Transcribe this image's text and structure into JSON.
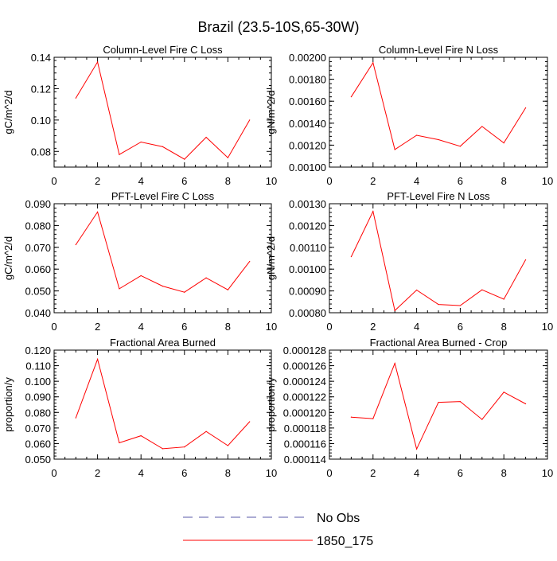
{
  "figure": {
    "title": "Brazil (23.5-10S,65-30W)"
  },
  "legend": {
    "entries": [
      {
        "label": "No Obs",
        "color": "#5a5aa8",
        "style": "dashed"
      },
      {
        "label": "1850_175",
        "color": "#ff0000",
        "style": "solid"
      }
    ]
  },
  "chart_data": [
    {
      "type": "line",
      "title": "Column-Level Fire C Loss",
      "xlabel": "",
      "ylabel": "gC/m^2/d",
      "xlim": [
        0,
        10
      ],
      "ylim": [
        0.07,
        0.14
      ],
      "x_ticks": [
        0,
        2,
        4,
        6,
        8,
        10
      ],
      "y_ticks": [
        0.08,
        0.1,
        0.12,
        0.14
      ],
      "y_tick_labels": [
        "0.08",
        "0.10",
        "0.12",
        "0.14"
      ],
      "series": [
        {
          "name": "1850_175",
          "color": "#ff0000",
          "x": [
            1,
            2,
            3,
            4,
            5,
            6,
            7,
            8,
            9
          ],
          "values": [
            0.114,
            0.137,
            0.078,
            0.086,
            0.083,
            0.075,
            0.089,
            0.076,
            0.1
          ]
        }
      ]
    },
    {
      "type": "line",
      "title": "Column-Level Fire N Loss",
      "xlabel": "",
      "ylabel": "gN/m^2/d",
      "xlim": [
        0,
        10
      ],
      "ylim": [
        0.001,
        0.002
      ],
      "x_ticks": [
        0,
        2,
        4,
        6,
        8,
        10
      ],
      "y_ticks": [
        0.001,
        0.0012,
        0.0014,
        0.0016,
        0.0018,
        0.002
      ],
      "y_tick_labels": [
        "0.00100",
        "0.00120",
        "0.00140",
        "0.00160",
        "0.00180",
        "0.00200"
      ],
      "series": [
        {
          "name": "1850_175",
          "color": "#ff0000",
          "x": [
            1,
            2,
            3,
            4,
            5,
            6,
            7,
            8,
            9
          ],
          "values": [
            0.00164,
            0.00195,
            0.00116,
            0.00129,
            0.00125,
            0.00119,
            0.00137,
            0.00122,
            0.00154
          ]
        }
      ]
    },
    {
      "type": "line",
      "title": "PFT-Level Fire C Loss",
      "xlabel": "",
      "ylabel": "gC/m^2/d",
      "xlim": [
        0,
        10
      ],
      "ylim": [
        0.04,
        0.09
      ],
      "x_ticks": [
        0,
        2,
        4,
        6,
        8,
        10
      ],
      "y_ticks": [
        0.04,
        0.05,
        0.06,
        0.07,
        0.08,
        0.09
      ],
      "y_tick_labels": [
        "0.040",
        "0.050",
        "0.060",
        "0.070",
        "0.080",
        "0.090"
      ],
      "series": [
        {
          "name": "1850_175",
          "color": "#ff0000",
          "x": [
            1,
            2,
            3,
            4,
            5,
            6,
            7,
            8,
            9
          ],
          "values": [
            0.0712,
            0.0862,
            0.051,
            0.057,
            0.0522,
            0.0494,
            0.056,
            0.0505,
            0.0635
          ]
        }
      ]
    },
    {
      "type": "line",
      "title": "PFT-Level Fire N Loss",
      "xlabel": "",
      "ylabel": "gN/m^2/d",
      "xlim": [
        0,
        10
      ],
      "ylim": [
        0.0008,
        0.0013
      ],
      "x_ticks": [
        0,
        2,
        4,
        6,
        8,
        10
      ],
      "y_ticks": [
        0.0008,
        0.0009,
        0.001,
        0.0011,
        0.0012,
        0.0013
      ],
      "y_tick_labels": [
        "0.00080",
        "0.00090",
        "0.00100",
        "0.00110",
        "0.00120",
        "0.00130"
      ],
      "series": [
        {
          "name": "1850_175",
          "color": "#ff0000",
          "x": [
            1,
            2,
            3,
            4,
            5,
            6,
            7,
            8,
            9
          ],
          "values": [
            0.001057,
            0.001265,
            0.00081,
            0.000904,
            0.000838,
            0.000833,
            0.000905,
            0.000862,
            0.001043
          ]
        }
      ]
    },
    {
      "type": "line",
      "title": "Fractional Area Burned",
      "xlabel": "",
      "ylabel": "proportion/y",
      "xlim": [
        0,
        10
      ],
      "ylim": [
        0.05,
        0.12
      ],
      "x_ticks": [
        0,
        2,
        4,
        6,
        8,
        10
      ],
      "y_ticks": [
        0.05,
        0.06,
        0.07,
        0.08,
        0.09,
        0.1,
        0.11,
        0.12
      ],
      "y_tick_labels": [
        "0.050",
        "0.060",
        "0.070",
        "0.080",
        "0.090",
        "0.100",
        "0.110",
        "0.120"
      ],
      "series": [
        {
          "name": "1850_175",
          "color": "#ff0000",
          "x": [
            1,
            2,
            3,
            4,
            5,
            6,
            7,
            8,
            9
          ],
          "values": [
            0.0765,
            0.1142,
            0.0605,
            0.065,
            0.0567,
            0.0578,
            0.0678,
            0.0587,
            0.074
          ]
        }
      ]
    },
    {
      "type": "line",
      "title": "Fractional Area Burned - Crop",
      "xlabel": "",
      "ylabel": "proportion/y",
      "xlim": [
        0,
        10
      ],
      "ylim": [
        0.000114,
        0.000128
      ],
      "x_ticks": [
        0,
        2,
        4,
        6,
        8,
        10
      ],
      "y_ticks": [
        0.000114,
        0.000116,
        0.000118,
        0.00012,
        0.000122,
        0.000124,
        0.000126,
        0.000128
      ],
      "y_tick_labels": [
        "0.000114",
        "0.000116",
        "0.000118",
        "0.000120",
        "0.000122",
        "0.000124",
        "0.000126",
        "0.000128"
      ],
      "series": [
        {
          "name": "1850_175",
          "color": "#ff0000",
          "x": [
            1,
            2,
            3,
            4,
            5,
            6,
            7,
            8,
            9
          ],
          "values": [
            0.0001194,
            0.0001192,
            0.0001263,
            0.0001153,
            0.0001213,
            0.0001214,
            0.0001191,
            0.0001226,
            0.0001211
          ]
        }
      ]
    }
  ]
}
